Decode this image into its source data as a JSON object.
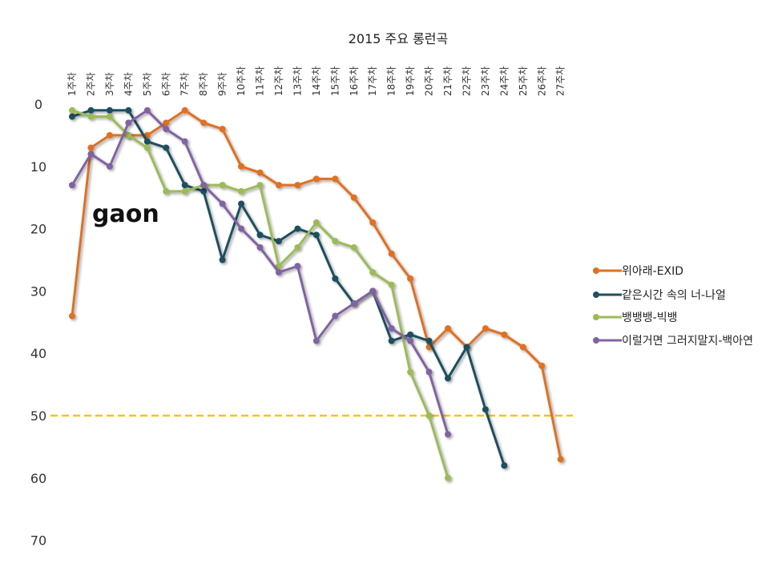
{
  "chart_data": {
    "type": "line",
    "title": "2015 주요 롱런곡",
    "categories": [
      "1주차",
      "2주차",
      "3주차",
      "4주차",
      "5주차",
      "6주차",
      "7주차",
      "8주차",
      "9주차",
      "10주차",
      "11주차",
      "12주차",
      "13주차",
      "14주차",
      "15주차",
      "16주차",
      "17주차",
      "18주차",
      "19주차",
      "20주차",
      "21주차",
      "22주차",
      "23주차",
      "24주차",
      "25주차",
      "26주차",
      "27주차"
    ],
    "y_ticks": [
      "0",
      "10",
      "20",
      "30",
      "40",
      "50",
      "60",
      "70"
    ],
    "ylim": [
      0,
      70
    ],
    "y_reversed": true,
    "grid": false,
    "legend_position": "right",
    "reference_line": {
      "value": 50,
      "color": "#F5C518",
      "style": "dashed"
    },
    "series": [
      {
        "name": "위아래-EXID",
        "color": "#E07020",
        "values": [
          34,
          7,
          5,
          5,
          5,
          3,
          1,
          3,
          4,
          10,
          11,
          13,
          13,
          12,
          12,
          15,
          19,
          24,
          28,
          39,
          36,
          39,
          36,
          37,
          39,
          42,
          57
        ]
      },
      {
        "name": "같은시간 속의 너-나얼",
        "color": "#1F5060",
        "values": [
          2,
          1,
          1,
          1,
          6,
          7,
          13,
          14,
          25,
          16,
          21,
          22,
          20,
          21,
          28,
          32,
          30,
          38,
          37,
          38,
          44,
          39,
          49,
          58,
          null,
          null,
          null
        ]
      },
      {
        "name": "뱅뱅뱅-빅뱅",
        "color": "#9BBB59",
        "values": [
          1,
          2,
          2,
          5,
          7,
          14,
          14,
          13,
          13,
          14,
          13,
          26,
          23,
          19,
          22,
          23,
          27,
          29,
          43,
          50,
          60,
          null,
          null,
          null,
          null,
          null,
          null
        ]
      },
      {
        "name": "이럴거면 그러지말지-백아연",
        "color": "#8064A2",
        "values": [
          13,
          8,
          10,
          3,
          1,
          4,
          6,
          13,
          16,
          20,
          23,
          27,
          26,
          38,
          34,
          32,
          30,
          36,
          38,
          43,
          53,
          null,
          null,
          null,
          null,
          null,
          null
        ]
      }
    ]
  },
  "logo": {
    "text": "gaon"
  }
}
